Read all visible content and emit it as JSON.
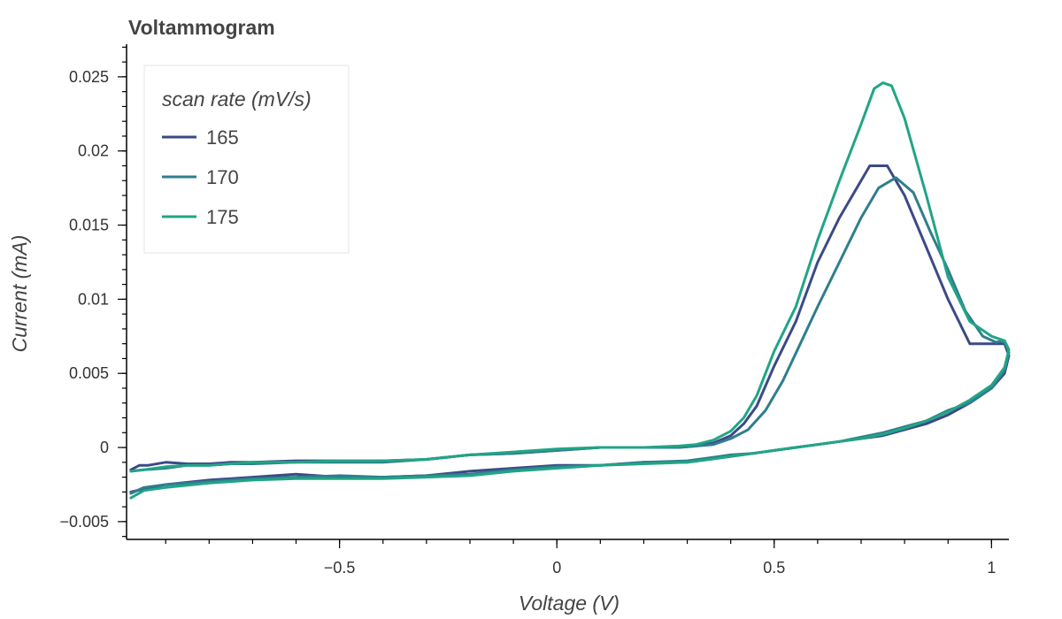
{
  "chart_data": {
    "type": "line",
    "title": "Voltammogram",
    "xlabel": "Voltage (V)",
    "ylabel": "Current (mA)",
    "xlim": [
      -0.99,
      1.04
    ],
    "ylim": [
      -0.0062,
      0.0272
    ],
    "x_ticks": [
      -0.5,
      0,
      0.5,
      1
    ],
    "x_tick_labels": [
      "−0.5",
      "0",
      "0.5",
      "1"
    ],
    "y_ticks": [
      -0.005,
      0,
      0.005,
      0.01,
      0.015,
      0.02,
      0.025
    ],
    "y_tick_labels": [
      "−0.005",
      "0",
      "0.005",
      "0.01",
      "0.015",
      "0.02",
      "0.025"
    ],
    "grid": false,
    "legend": {
      "title": "scan rate (mV/s)",
      "position": "top-left"
    },
    "series": [
      {
        "name": "165",
        "color": "#3b4a86",
        "points": [
          [
            -0.98,
            -0.0015
          ],
          [
            -0.96,
            -0.0012
          ],
          [
            -0.94,
            -0.0012
          ],
          [
            -0.9,
            -0.001
          ],
          [
            -0.85,
            -0.0011
          ],
          [
            -0.8,
            -0.0011
          ],
          [
            -0.75,
            -0.001
          ],
          [
            -0.7,
            -0.001
          ],
          [
            -0.6,
            -0.0009
          ],
          [
            -0.5,
            -0.0009
          ],
          [
            -0.4,
            -0.0009
          ],
          [
            -0.3,
            -0.0008
          ],
          [
            -0.2,
            -0.0005
          ],
          [
            -0.1,
            -0.0004
          ],
          [
            0.0,
            -0.0002
          ],
          [
            0.1,
            0.0
          ],
          [
            0.2,
            0.0
          ],
          [
            0.28,
            0.0
          ],
          [
            0.32,
            0.0001
          ],
          [
            0.36,
            0.0003
          ],
          [
            0.4,
            0.0008
          ],
          [
            0.43,
            0.0016
          ],
          [
            0.46,
            0.0028
          ],
          [
            0.5,
            0.0055
          ],
          [
            0.55,
            0.0085
          ],
          [
            0.6,
            0.0125
          ],
          [
            0.65,
            0.0155
          ],
          [
            0.7,
            0.018
          ],
          [
            0.72,
            0.019
          ],
          [
            0.76,
            0.019
          ],
          [
            0.8,
            0.017
          ],
          [
            0.85,
            0.0135
          ],
          [
            0.9,
            0.01
          ],
          [
            0.95,
            0.007
          ],
          [
            1.0,
            0.007
          ],
          [
            1.03,
            0.007
          ],
          [
            1.04,
            0.0062
          ],
          [
            1.03,
            0.005
          ],
          [
            1.0,
            0.004
          ],
          [
            0.95,
            0.003
          ],
          [
            0.9,
            0.0022
          ],
          [
            0.85,
            0.0016
          ],
          [
            0.8,
            0.0012
          ],
          [
            0.75,
            0.0008
          ],
          [
            0.7,
            0.0006
          ],
          [
            0.65,
            0.0004
          ],
          [
            0.6,
            0.0002
          ],
          [
            0.55,
            0.0
          ],
          [
            0.5,
            -0.0002
          ],
          [
            0.45,
            -0.0004
          ],
          [
            0.4,
            -0.0006
          ],
          [
            0.35,
            -0.0008
          ],
          [
            0.3,
            -0.001
          ],
          [
            0.2,
            -0.001
          ],
          [
            0.1,
            -0.0012
          ],
          [
            0.0,
            -0.0012
          ],
          [
            -0.1,
            -0.0014
          ],
          [
            -0.2,
            -0.0016
          ],
          [
            -0.3,
            -0.0019
          ],
          [
            -0.4,
            -0.002
          ],
          [
            -0.5,
            -0.002
          ],
          [
            -0.6,
            -0.0018
          ],
          [
            -0.7,
            -0.002
          ],
          [
            -0.8,
            -0.0022
          ],
          [
            -0.9,
            -0.0025
          ],
          [
            -0.95,
            -0.0028
          ],
          [
            -0.98,
            -0.003
          ]
        ]
      },
      {
        "name": "170",
        "color": "#2e7e8e",
        "points": [
          [
            -0.98,
            -0.0016
          ],
          [
            -0.95,
            -0.0015
          ],
          [
            -0.9,
            -0.0014
          ],
          [
            -0.85,
            -0.0012
          ],
          [
            -0.8,
            -0.0012
          ],
          [
            -0.75,
            -0.0011
          ],
          [
            -0.7,
            -0.0011
          ],
          [
            -0.6,
            -0.001
          ],
          [
            -0.5,
            -0.001
          ],
          [
            -0.4,
            -0.001
          ],
          [
            -0.3,
            -0.0008
          ],
          [
            -0.2,
            -0.0005
          ],
          [
            -0.1,
            -0.0004
          ],
          [
            0.0,
            -0.0002
          ],
          [
            0.1,
            0.0
          ],
          [
            0.2,
            0.0
          ],
          [
            0.28,
            0.0
          ],
          [
            0.32,
            0.0001
          ],
          [
            0.36,
            0.0002
          ],
          [
            0.4,
            0.0006
          ],
          [
            0.44,
            0.0012
          ],
          [
            0.48,
            0.0025
          ],
          [
            0.52,
            0.0045
          ],
          [
            0.56,
            0.007
          ],
          [
            0.6,
            0.0095
          ],
          [
            0.65,
            0.0125
          ],
          [
            0.7,
            0.0155
          ],
          [
            0.74,
            0.0175
          ],
          [
            0.78,
            0.0182
          ],
          [
            0.82,
            0.0172
          ],
          [
            0.86,
            0.0145
          ],
          [
            0.9,
            0.012
          ],
          [
            0.94,
            0.0092
          ],
          [
            0.98,
            0.0075
          ],
          [
            1.01,
            0.0071
          ],
          [
            1.03,
            0.0072
          ],
          [
            1.04,
            0.0064
          ],
          [
            1.03,
            0.0052
          ],
          [
            1.0,
            0.004
          ],
          [
            0.95,
            0.003
          ],
          [
            0.9,
            0.0025
          ],
          [
            0.85,
            0.0018
          ],
          [
            0.8,
            0.0014
          ],
          [
            0.75,
            0.001
          ],
          [
            0.7,
            0.0007
          ],
          [
            0.65,
            0.0004
          ],
          [
            0.6,
            0.0002
          ],
          [
            0.55,
            0.0
          ],
          [
            0.5,
            -0.0002
          ],
          [
            0.45,
            -0.0004
          ],
          [
            0.4,
            -0.0005
          ],
          [
            0.35,
            -0.0007
          ],
          [
            0.3,
            -0.0009
          ],
          [
            0.2,
            -0.001
          ],
          [
            0.1,
            -0.0012
          ],
          [
            0.0,
            -0.0013
          ],
          [
            -0.1,
            -0.0015
          ],
          [
            -0.2,
            -0.0018
          ],
          [
            -0.3,
            -0.0019
          ],
          [
            -0.4,
            -0.002
          ],
          [
            -0.5,
            -0.0019
          ],
          [
            -0.6,
            -0.002
          ],
          [
            -0.7,
            -0.0021
          ],
          [
            -0.8,
            -0.0023
          ],
          [
            -0.9,
            -0.0025
          ],
          [
            -0.95,
            -0.0027
          ],
          [
            -0.98,
            -0.0031
          ]
        ]
      },
      {
        "name": "175",
        "color": "#21a585",
        "points": [
          [
            -0.98,
            -0.0016
          ],
          [
            -0.95,
            -0.0015
          ],
          [
            -0.9,
            -0.0013
          ],
          [
            -0.85,
            -0.0012
          ],
          [
            -0.8,
            -0.0012
          ],
          [
            -0.75,
            -0.0011
          ],
          [
            -0.7,
            -0.001
          ],
          [
            -0.6,
            -0.001
          ],
          [
            -0.5,
            -0.0009
          ],
          [
            -0.4,
            -0.0009
          ],
          [
            -0.3,
            -0.0008
          ],
          [
            -0.2,
            -0.0005
          ],
          [
            -0.1,
            -0.0003
          ],
          [
            0.0,
            -0.0001
          ],
          [
            0.1,
            0.0
          ],
          [
            0.2,
            0.0
          ],
          [
            0.28,
            0.0001
          ],
          [
            0.32,
            0.0002
          ],
          [
            0.36,
            0.0005
          ],
          [
            0.4,
            0.0011
          ],
          [
            0.43,
            0.002
          ],
          [
            0.46,
            0.0035
          ],
          [
            0.5,
            0.0065
          ],
          [
            0.55,
            0.0095
          ],
          [
            0.6,
            0.014
          ],
          [
            0.65,
            0.018
          ],
          [
            0.7,
            0.0218
          ],
          [
            0.73,
            0.0242
          ],
          [
            0.75,
            0.0246
          ],
          [
            0.77,
            0.0244
          ],
          [
            0.8,
            0.0222
          ],
          [
            0.85,
            0.017
          ],
          [
            0.9,
            0.0115
          ],
          [
            0.95,
            0.0085
          ],
          [
            1.0,
            0.0075
          ],
          [
            1.03,
            0.0072
          ],
          [
            1.04,
            0.0066
          ],
          [
            1.03,
            0.0054
          ],
          [
            1.0,
            0.0042
          ],
          [
            0.95,
            0.0032
          ],
          [
            0.9,
            0.0024
          ],
          [
            0.85,
            0.0018
          ],
          [
            0.8,
            0.0013
          ],
          [
            0.75,
            0.0009
          ],
          [
            0.7,
            0.0006
          ],
          [
            0.65,
            0.0004
          ],
          [
            0.6,
            0.0002
          ],
          [
            0.55,
            0.0
          ],
          [
            0.5,
            -0.0002
          ],
          [
            0.45,
            -0.0004
          ],
          [
            0.4,
            -0.0006
          ],
          [
            0.35,
            -0.0008
          ],
          [
            0.3,
            -0.001
          ],
          [
            0.2,
            -0.0011
          ],
          [
            0.1,
            -0.0012
          ],
          [
            0.0,
            -0.0014
          ],
          [
            -0.1,
            -0.0016
          ],
          [
            -0.2,
            -0.0019
          ],
          [
            -0.3,
            -0.002
          ],
          [
            -0.4,
            -0.0021
          ],
          [
            -0.5,
            -0.0021
          ],
          [
            -0.6,
            -0.0021
          ],
          [
            -0.7,
            -0.0022
          ],
          [
            -0.8,
            -0.0024
          ],
          [
            -0.9,
            -0.0027
          ],
          [
            -0.95,
            -0.0029
          ],
          [
            -0.98,
            -0.0034
          ]
        ]
      }
    ]
  }
}
